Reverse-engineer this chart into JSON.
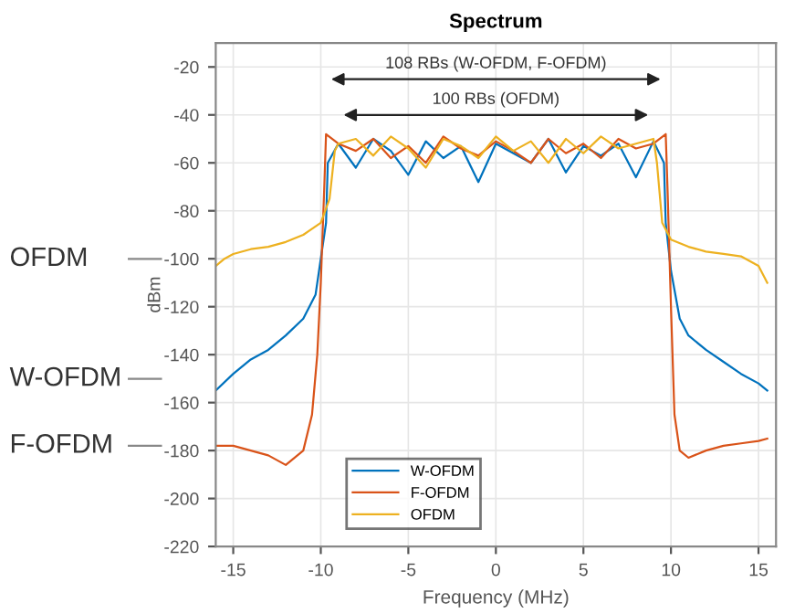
{
  "chart_data": {
    "type": "line",
    "title": "Spectrum",
    "xlabel": "Frequency (MHz)",
    "ylabel": "dBm",
    "xlim": [
      -16,
      16
    ],
    "ylim": [
      -220,
      -10
    ],
    "xticks": [
      -15,
      -10,
      -5,
      0,
      5,
      10,
      15
    ],
    "yticks": [
      -220,
      -200,
      -180,
      -160,
      -140,
      -120,
      -100,
      -80,
      -60,
      -40,
      -20
    ],
    "grid": true,
    "legend": "bottom left",
    "line_style": "solid",
    "series": [
      {
        "name": "W-OFDM",
        "color": "#0072bd",
        "x": [
          -16,
          -15,
          -14,
          -13,
          -12,
          -11,
          -10.3,
          -10,
          -9.7,
          -9.6,
          -9,
          -8,
          -7,
          -6,
          -5,
          -4,
          -3,
          -2,
          -1,
          0,
          1,
          2,
          3,
          4,
          5,
          6,
          7,
          8,
          9,
          9.6,
          9.7,
          10,
          10.5,
          11,
          12,
          13,
          14,
          15,
          15.5
        ],
        "values": [
          -155,
          -148,
          -142,
          -138,
          -132,
          -125,
          -115,
          -100,
          -85,
          -60,
          -52,
          -62,
          -50,
          -55,
          -65,
          -51,
          -58,
          -53,
          -68,
          -52,
          -56,
          -60,
          -50,
          -64,
          -53,
          -57,
          -52,
          -66,
          -51,
          -60,
          -85,
          -105,
          -125,
          -132,
          -138,
          -143,
          -148,
          -152,
          -155
        ]
      },
      {
        "name": "F-OFDM",
        "color": "#d95319",
        "x": [
          -16,
          -15,
          -14,
          -13,
          -12,
          -11,
          -10.5,
          -10.2,
          -10,
          -9.8,
          -9.7,
          -9,
          -8,
          -7,
          -6,
          -5,
          -4,
          -3,
          -2,
          -1,
          0,
          1,
          2,
          3,
          4,
          5,
          6,
          7,
          8,
          9,
          9.7,
          9.8,
          10,
          10.2,
          10.5,
          11,
          12,
          13,
          14,
          15,
          15.5
        ],
        "values": [
          -178,
          -178,
          -180,
          -182,
          -186,
          -180,
          -165,
          -140,
          -110,
          -70,
          -48,
          -52,
          -55,
          -50,
          -58,
          -53,
          -60,
          -49,
          -54,
          -57,
          -51,
          -55,
          -60,
          -50,
          -56,
          -52,
          -58,
          -50,
          -54,
          -52,
          -48,
          -70,
          -120,
          -165,
          -180,
          -183,
          -180,
          -178,
          -177,
          -176,
          -175
        ]
      },
      {
        "name": "OFDM",
        "color": "#edb120",
        "x": [
          -16,
          -15.5,
          -15,
          -14,
          -13,
          -12,
          -11,
          -10,
          -9.5,
          -9.2,
          -9,
          -8,
          -7,
          -6,
          -5,
          -4,
          -3,
          -2,
          -1,
          0,
          1,
          2,
          3,
          4,
          5,
          6,
          7,
          8,
          9,
          9.2,
          9.5,
          10,
          11,
          12,
          13,
          14,
          15,
          15.5
        ],
        "values": [
          -103,
          -100,
          -98,
          -96,
          -95,
          -93,
          -90,
          -85,
          -75,
          -55,
          -52,
          -50,
          -57,
          -49,
          -54,
          -62,
          -50,
          -53,
          -58,
          -49,
          -55,
          -51,
          -60,
          -50,
          -56,
          -49,
          -54,
          -52,
          -50,
          -60,
          -85,
          -92,
          -95,
          -97,
          -98,
          -99,
          -103,
          -110
        ]
      }
    ],
    "annotations": [
      "108 RBs (W-OFDM, F-OFDM)",
      "100 RBs (OFDM)",
      "OFDM",
      "W-OFDM",
      "F-OFDM"
    ]
  }
}
